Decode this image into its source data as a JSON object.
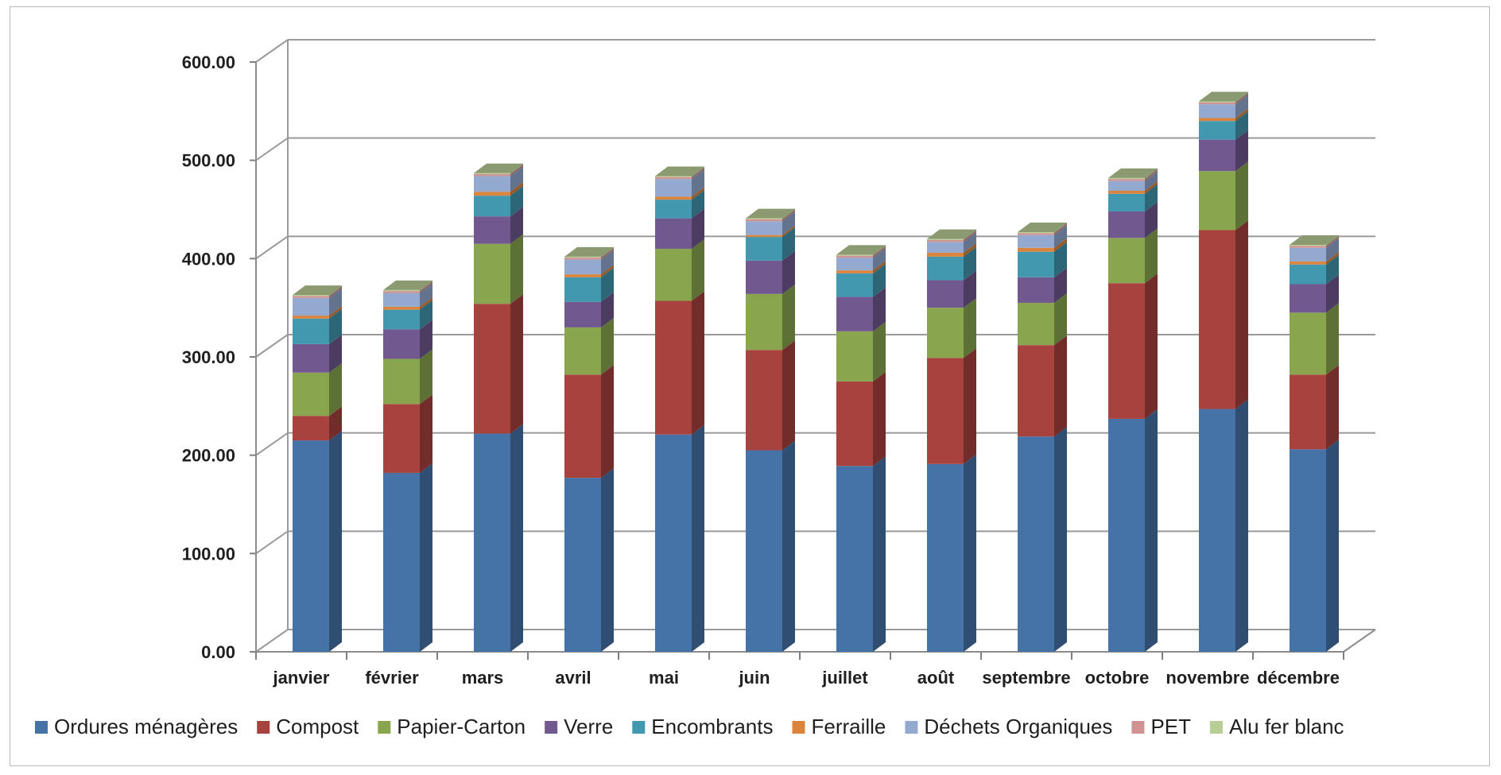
{
  "chart_data": {
    "type": "bar",
    "stacked": true,
    "three_d": true,
    "categories": [
      "janvier",
      "février",
      "mars",
      "avril",
      "mai",
      "juin",
      "juillet",
      "août",
      "septembre",
      "octobre",
      "novembre",
      "décembre"
    ],
    "ylim": [
      0,
      600
    ],
    "y_ticks": [
      "0.00",
      "100.00",
      "200.00",
      "300.00",
      "400.00",
      "500.00",
      "600.00"
    ],
    "grid": true,
    "legend_position": "bottom",
    "series": [
      {
        "name": "Ordures ménagères",
        "color": "#4573a7",
        "values": [
          215,
          182,
          222,
          177,
          221,
          205,
          189,
          191,
          219,
          237,
          247,
          206
        ]
      },
      {
        "name": "Compost",
        "color": "#a8423f",
        "values": [
          25,
          70,
          132,
          105,
          136,
          102,
          86,
          108,
          93,
          138,
          182,
          76
        ]
      },
      {
        "name": "Papier-Carton",
        "color": "#89a54e",
        "values": [
          44,
          46,
          61,
          48,
          53,
          57,
          51,
          51,
          43,
          46,
          60,
          63
        ]
      },
      {
        "name": "Verre",
        "color": "#71588f",
        "values": [
          29,
          30,
          28,
          26,
          31,
          34,
          35,
          28,
          26,
          27,
          32,
          29
        ]
      },
      {
        "name": "Encombrants",
        "color": "#4298af",
        "values": [
          26,
          20,
          21,
          25,
          19,
          24,
          24,
          24,
          26,
          18,
          19,
          20
        ]
      },
      {
        "name": "Ferraille",
        "color": "#db843d",
        "values": [
          3,
          3,
          4,
          3,
          3,
          2,
          3,
          4,
          4,
          3,
          3,
          3
        ]
      },
      {
        "name": "Déchets Organiques",
        "color": "#93a9cf",
        "values": [
          18,
          14,
          16,
          15,
          18,
          14,
          13,
          11,
          13,
          10,
          14,
          14
        ]
      },
      {
        "name": "PET",
        "color": "#d19392",
        "values": [
          2,
          2,
          2,
          2,
          2,
          2,
          2,
          2,
          2,
          2,
          2,
          2
        ]
      },
      {
        "name": "Alu fer blanc",
        "color": "#b9cd96",
        "values": [
          1,
          1,
          1,
          1,
          1,
          1,
          1,
          1,
          1,
          1,
          1,
          1
        ]
      }
    ]
  }
}
